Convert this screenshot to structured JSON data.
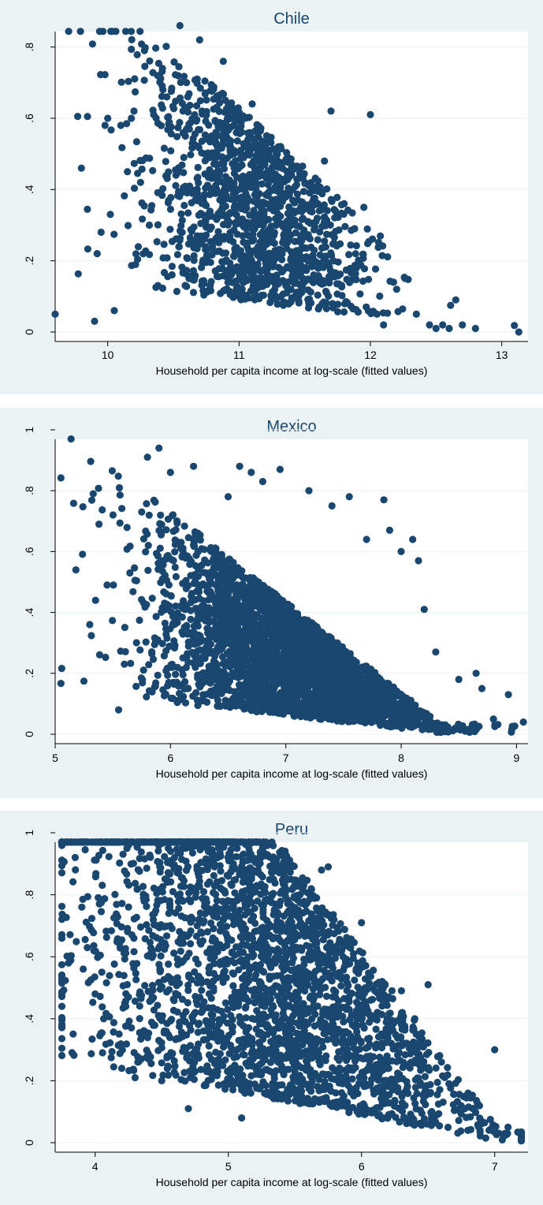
{
  "colors": {
    "background": "#eaf2f3",
    "plot_area": "#ffffff",
    "marker": "#1a476f",
    "title": "#1a476f"
  },
  "chart_data": [
    {
      "type": "scatter",
      "title": "Chile",
      "xlabel": "Household per capita income at log-scale (fitted values)",
      "ylabel": "",
      "xlim": [
        9.6,
        13.2
      ],
      "ylim": [
        0,
        0.87
      ],
      "xticks": [
        10,
        11,
        12,
        13
      ],
      "xtick_labels": [
        "10",
        "11",
        "12",
        "13"
      ],
      "yticks": [
        0,
        0.2,
        0.4,
        0.6,
        0.8
      ],
      "ytick_labels": [
        "0",
        ".2",
        ".4",
        ".6",
        ".8"
      ],
      "grid": true,
      "points": [
        [
          9.6,
          0.05
        ],
        [
          9.8,
          0.46
        ],
        [
          9.9,
          0.03
        ],
        [
          9.95,
          0.28
        ],
        [
          9.92,
          0.22
        ],
        [
          9.98,
          0.58
        ],
        [
          10.0,
          0.6
        ],
        [
          10.02,
          0.33
        ],
        [
          10.05,
          0.06
        ],
        [
          10.1,
          0.58
        ],
        [
          10.15,
          0.45
        ],
        [
          10.18,
          0.6
        ],
        [
          10.2,
          0.62
        ],
        [
          10.25,
          0.42
        ],
        [
          10.28,
          0.79
        ],
        [
          10.35,
          0.61
        ],
        [
          10.38,
          0.72
        ],
        [
          10.42,
          0.68
        ],
        [
          10.45,
          0.66
        ],
        [
          10.55,
          0.86
        ],
        [
          10.6,
          0.7
        ],
        [
          10.7,
          0.82
        ],
        [
          10.88,
          0.76
        ],
        [
          10.9,
          0.56
        ],
        [
          11.05,
          0.53
        ],
        [
          11.1,
          0.64
        ],
        [
          11.3,
          0.52
        ],
        [
          11.45,
          0.37
        ],
        [
          11.6,
          0.36
        ],
        [
          11.65,
          0.48
        ],
        [
          11.7,
          0.62
        ],
        [
          11.75,
          0.33
        ],
        [
          11.8,
          0.36
        ],
        [
          11.88,
          0.29
        ],
        [
          12.0,
          0.61
        ],
        [
          11.95,
          0.35
        ],
        [
          12.05,
          0.05
        ],
        [
          12.1,
          0.02
        ],
        [
          12.2,
          0.12
        ],
        [
          12.35,
          0.05
        ],
        [
          12.45,
          0.02
        ],
        [
          12.5,
          0.01
        ],
        [
          12.55,
          0.02
        ],
        [
          12.6,
          0.01
        ],
        [
          12.65,
          0.09
        ],
        [
          12.7,
          0.02
        ],
        [
          12.8,
          0.01
        ],
        [
          13.13,
          0.0
        ]
      ],
      "cloud": {
        "x_center": 11.1,
        "x_sd": 0.42,
        "y_max_at": 0.42,
        "slope": -0.19,
        "n": 1400
      }
    },
    {
      "type": "scatter",
      "title": "Mexico",
      "xlabel": "Household per capita income at log-scale (fitted values)",
      "ylabel": "",
      "xlim": [
        5.0,
        9.1
      ],
      "ylim": [
        0,
        1.0
      ],
      "xticks": [
        5,
        6,
        7,
        8,
        9
      ],
      "xtick_labels": [
        "5",
        "6",
        "7",
        "8",
        "9"
      ],
      "yticks": [
        0,
        0.2,
        0.4,
        0.6,
        0.8,
        1.0
      ],
      "ytick_labels": [
        "0",
        ".2",
        ".4",
        ".6",
        ".8",
        "1"
      ],
      "grid": true,
      "points": [
        [
          5.18,
          0.54
        ],
        [
          5.3,
          0.36
        ],
        [
          5.33,
          0.79
        ],
        [
          5.35,
          0.44
        ],
        [
          5.38,
          0.69
        ],
        [
          5.45,
          0.49
        ],
        [
          5.55,
          0.08
        ],
        [
          5.6,
          0.23
        ],
        [
          5.75,
          0.73
        ],
        [
          5.8,
          0.91
        ],
        [
          5.9,
          0.94
        ],
        [
          6.0,
          0.86
        ],
        [
          6.2,
          0.88
        ],
        [
          6.5,
          0.78
        ],
        [
          6.6,
          0.88
        ],
        [
          6.7,
          0.86
        ],
        [
          6.8,
          0.83
        ],
        [
          6.95,
          0.87
        ],
        [
          7.2,
          0.8
        ],
        [
          7.4,
          0.75
        ],
        [
          7.55,
          0.78
        ],
        [
          7.7,
          0.64
        ],
        [
          7.85,
          0.77
        ],
        [
          7.9,
          0.67
        ],
        [
          8.0,
          0.6
        ],
        [
          8.1,
          0.64
        ],
        [
          8.15,
          0.57
        ],
        [
          8.2,
          0.41
        ],
        [
          8.3,
          0.27
        ],
        [
          8.5,
          0.18
        ],
        [
          8.65,
          0.2
        ],
        [
          8.7,
          0.15
        ],
        [
          8.8,
          0.05
        ],
        [
          8.93,
          0.13
        ],
        [
          9.06,
          0.04
        ]
      ],
      "cloud": {
        "x_center": 7.0,
        "x_sd": 0.6,
        "y_max_at": 0.35,
        "slope": -0.17,
        "n": 3000
      }
    },
    {
      "type": "scatter",
      "title": "Peru",
      "xlabel": "Household per capita income at log-scale (fitted values)",
      "ylabel": "",
      "xlim": [
        3.7,
        7.25
      ],
      "ylim": [
        0,
        1.0
      ],
      "xticks": [
        4,
        5,
        6,
        7
      ],
      "xtick_labels": [
        "4",
        "5",
        "6",
        "7"
      ],
      "yticks": [
        0,
        0.2,
        0.4,
        0.6,
        0.8,
        1.0
      ],
      "ytick_labels": [
        "0",
        ".2",
        ".4",
        ".6",
        ".8",
        "1"
      ],
      "grid": true,
      "points": [
        [
          3.75,
          0.44
        ],
        [
          3.8,
          0.58
        ],
        [
          3.85,
          0.92
        ],
        [
          3.9,
          0.76
        ],
        [
          4.0,
          0.48
        ],
        [
          4.05,
          0.55
        ],
        [
          4.2,
          0.24
        ],
        [
          4.3,
          0.21
        ],
        [
          4.4,
          0.27
        ],
        [
          4.5,
          0.2
        ],
        [
          4.7,
          0.11
        ],
        [
          4.85,
          0.94
        ],
        [
          5.0,
          0.86
        ],
        [
          5.1,
          0.08
        ],
        [
          5.3,
          0.78
        ],
        [
          5.7,
          0.88
        ],
        [
          5.75,
          0.89
        ],
        [
          6.0,
          0.71
        ],
        [
          6.1,
          0.49
        ],
        [
          6.3,
          0.49
        ],
        [
          6.4,
          0.4
        ],
        [
          6.5,
          0.51
        ],
        [
          6.6,
          0.26
        ],
        [
          6.8,
          0.16
        ],
        [
          6.9,
          0.07
        ],
        [
          7.0,
          0.3
        ],
        [
          7.1,
          0.05
        ],
        [
          7.2,
          0.03
        ]
      ],
      "cloud": {
        "x_center": 5.2,
        "x_sd": 0.75,
        "y_max_at": 0.85,
        "slope": -0.32,
        "n": 3000
      }
    }
  ]
}
